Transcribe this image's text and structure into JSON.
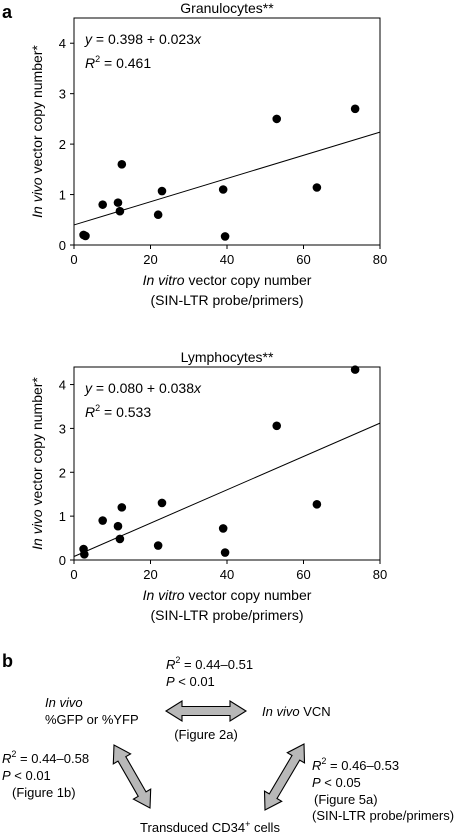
{
  "panel_labels": {
    "a": "a",
    "b": "b"
  },
  "chart_data": [
    {
      "type": "scatter",
      "title": "Granulocytes**",
      "ylabel_italic": "In vivo",
      "ylabel_rest": " vector copy number*",
      "xlabel_italic": "In vitro",
      "xlabel_rest": " vector copy number",
      "xlabel_line2": "(SIN-LTR probe/primers)",
      "xlim": [
        0,
        80
      ],
      "ylim": [
        0,
        4.5
      ],
      "xticks": [
        "0",
        "20",
        "40",
        "60",
        "80"
      ],
      "yticks": [
        "0",
        "1",
        "2",
        "3",
        "4"
      ],
      "equation": "y = 0.398 + 0.023x",
      "r2_value": " = 0.461",
      "fit": {
        "intercept": 0.398,
        "slope": 0.023
      },
      "points": [
        {
          "x": 2.5,
          "y": 0.2
        },
        {
          "x": 3.0,
          "y": 0.18
        },
        {
          "x": 7.5,
          "y": 0.8
        },
        {
          "x": 11.5,
          "y": 0.84
        },
        {
          "x": 12.0,
          "y": 0.67
        },
        {
          "x": 12.5,
          "y": 1.6
        },
        {
          "x": 22.0,
          "y": 0.6
        },
        {
          "x": 23.0,
          "y": 1.07
        },
        {
          "x": 39.0,
          "y": 1.1
        },
        {
          "x": 39.5,
          "y": 0.17
        },
        {
          "x": 53.0,
          "y": 2.5
        },
        {
          "x": 63.5,
          "y": 1.14
        },
        {
          "x": 73.5,
          "y": 2.7
        }
      ]
    },
    {
      "type": "scatter",
      "title": "Lymphocytes**",
      "ylabel_italic": "In vivo",
      "ylabel_rest": " vector copy number*",
      "xlabel_italic": "In vitro",
      "xlabel_rest": " vector copy number",
      "xlabel_line2": "(SIN-LTR probe/primers)",
      "xlim": [
        0,
        80
      ],
      "ylim": [
        0,
        4.4
      ],
      "xticks": [
        "0",
        "20",
        "40",
        "60",
        "80"
      ],
      "yticks": [
        "0",
        "1",
        "2",
        "3",
        "4"
      ],
      "equation": "y = 0.080 + 0.038x",
      "r2_value": " = 0.533",
      "fit": {
        "intercept": 0.08,
        "slope": 0.038
      },
      "points": [
        {
          "x": 2.5,
          "y": 0.25
        },
        {
          "x": 2.7,
          "y": 0.13
        },
        {
          "x": 7.5,
          "y": 0.9
        },
        {
          "x": 11.5,
          "y": 0.77
        },
        {
          "x": 12.0,
          "y": 0.48
        },
        {
          "x": 12.5,
          "y": 1.2
        },
        {
          "x": 22.0,
          "y": 0.33
        },
        {
          "x": 23.0,
          "y": 1.3
        },
        {
          "x": 39.0,
          "y": 0.72
        },
        {
          "x": 39.5,
          "y": 0.17
        },
        {
          "x": 53.0,
          "y": 3.06
        },
        {
          "x": 63.5,
          "y": 1.27
        },
        {
          "x": 73.5,
          "y": 4.34
        }
      ]
    }
  ],
  "diagram": {
    "node_gfp_line1": "In vivo",
    "node_gfp_line2": "%GFP or %YFP",
    "node_vcn_italic": "In vivo",
    "node_vcn_rest": " VCN",
    "node_cd34_text": "Transduced CD34",
    "node_cd34_sup": "+",
    "node_cd34_tail": " cells",
    "top_r2": " = 0.44–0.51",
    "top_p": " < 0.01",
    "top_ref": "(Figure 2a)",
    "left_r2": " = 0.44–0.58",
    "left_p": " < 0.01",
    "left_ref": "(Figure 1b)",
    "right_r2": " = 0.46–0.53",
    "right_p": " < 0.05",
    "right_ref": "(Figure 5a)",
    "right_ref2": "(SIN-LTR probe/primers)",
    "arrow_color": "#b8b8b8"
  }
}
